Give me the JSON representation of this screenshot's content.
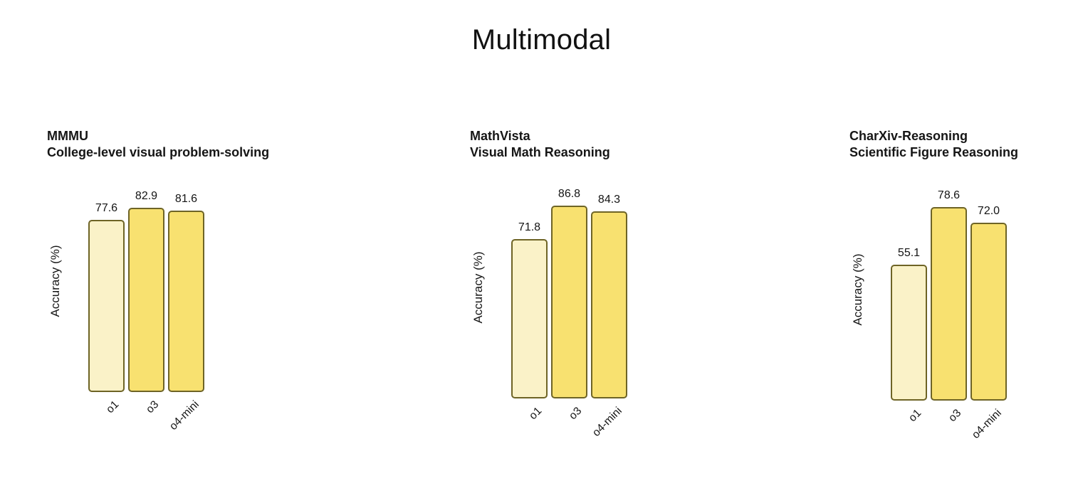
{
  "title": "Multimodal",
  "colors": {
    "background": "#ffffff",
    "text": "#141414",
    "bar_border": "#6e6426",
    "bar_o1": "#faf2c8",
    "bar_o3": "#f8e170",
    "bar_o4_mini": "#f8e170"
  },
  "chart_data": [
    {
      "type": "bar",
      "title": "MMMU",
      "subtitle": "College-level visual problem-solving",
      "ylabel": "Accuracy (%)",
      "categories": [
        "o1",
        "o3",
        "o4-mini"
      ],
      "values": [
        77.6,
        82.9,
        81.6
      ],
      "bar_labels": [
        "77.6",
        "82.9",
        "81.6"
      ],
      "bar_colors": [
        "#faf2c8",
        "#f8e170",
        "#f8e170"
      ],
      "ylim": [
        0,
        100
      ],
      "grid": false,
      "legend": "none"
    },
    {
      "type": "bar",
      "title": "MathVista",
      "subtitle": "Visual Math Reasoning",
      "ylabel": "Accuracy (%)",
      "categories": [
        "o1",
        "o3",
        "o4-mini"
      ],
      "values": [
        71.8,
        86.8,
        84.3
      ],
      "bar_labels": [
        "71.8",
        "86.8",
        "84.3"
      ],
      "bar_colors": [
        "#faf2c8",
        "#f8e170",
        "#f8e170"
      ],
      "ylim": [
        0,
        100
      ],
      "grid": false,
      "legend": "none"
    },
    {
      "type": "bar",
      "title": "CharXiv-Reasoning",
      "subtitle": "Scientific Figure Reasoning",
      "ylabel": "Accuracy (%)",
      "categories": [
        "o1",
        "o3",
        "o4-mini"
      ],
      "values": [
        55.1,
        78.6,
        72.0
      ],
      "bar_labels": [
        "55.1",
        "78.6",
        "72.0"
      ],
      "bar_colors": [
        "#faf2c8",
        "#f8e170",
        "#f8e170"
      ],
      "ylim": [
        0,
        90
      ],
      "grid": false,
      "legend": "none"
    }
  ]
}
